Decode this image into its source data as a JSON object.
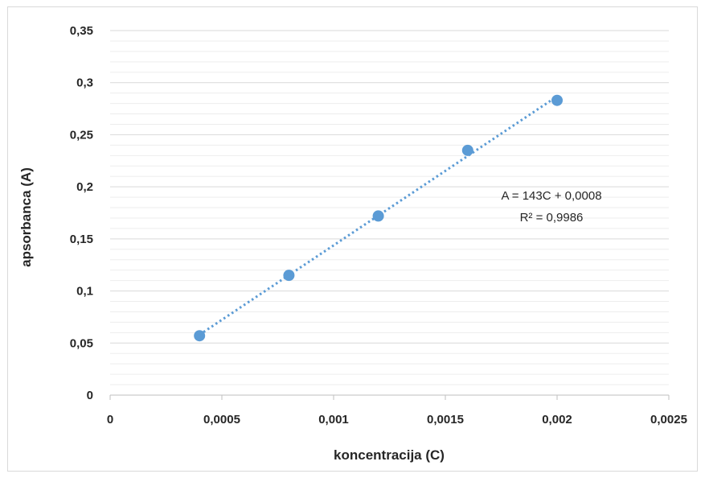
{
  "chart_data": {
    "type": "scatter",
    "title": "",
    "xlabel": "koncentracija (C)",
    "ylabel": "apsorbanca (A)",
    "xlim": [
      0,
      0.0025
    ],
    "ylim": [
      0,
      0.35
    ],
    "x_ticks": [
      0,
      0.0005,
      0.001,
      0.0015,
      0.002,
      0.0025
    ],
    "x_tick_labels": [
      "0",
      "0,0005",
      "0,001",
      "0,0015",
      "0,002",
      "0,0025"
    ],
    "y_ticks": [
      0,
      0.05,
      0.1,
      0.15,
      0.2,
      0.25,
      0.3,
      0.35
    ],
    "y_tick_labels": [
      "0",
      "0,05",
      "0,1",
      "0,15",
      "0,2",
      "0,25",
      "0,3",
      "0,35"
    ],
    "grid": true,
    "legend": "none",
    "series": [
      {
        "x": [
          0.0004,
          0.0008,
          0.0012,
          0.0016,
          0.002
        ],
        "y": [
          0.057,
          0.115,
          0.172,
          0.235,
          0.283
        ],
        "color": "#5b9bd5"
      }
    ],
    "trendline": {
      "type": "linear",
      "slope": 143,
      "intercept": 0.0008,
      "x_range": [
        0.0004,
        0.002
      ],
      "style": "dotted",
      "color": "#5b9bd5"
    },
    "annotations": [
      "A = 143C + 0,0008",
      "R² = 0,9986"
    ]
  }
}
